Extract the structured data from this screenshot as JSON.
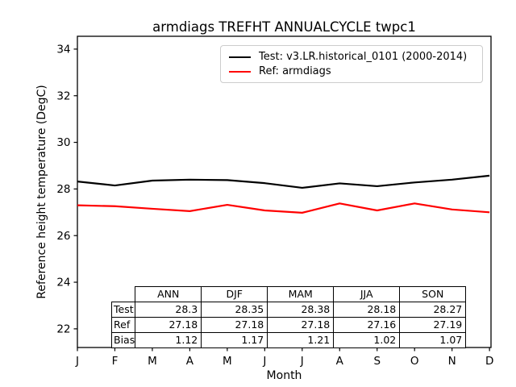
{
  "title": "armdiags TREFHT ANNUALCYCLE twpc1",
  "axes": {
    "xlabel": "Month",
    "ylabel": "Reference height temperature (DegC)"
  },
  "legend": {
    "position": "upper right",
    "items": [
      {
        "label": "Test: v3.LR.historical_0101 (2000-2014)",
        "color": "#000000"
      },
      {
        "label": "Ref: armdiags",
        "color": "#ff0000"
      }
    ]
  },
  "chart_data": {
    "type": "line",
    "title": "armdiags TREFHT ANNUALCYCLE twpc1",
    "xlabel": "Month",
    "ylabel": "Reference height temperature (DegC)",
    "x_ticklabels": [
      "J",
      "F",
      "M",
      "A",
      "M",
      "J",
      "J",
      "A",
      "S",
      "O",
      "N",
      "D"
    ],
    "y_ticks": [
      22,
      24,
      26,
      28,
      30,
      32,
      34
    ],
    "ylim": [
      21.2,
      34.55
    ],
    "grid": false,
    "legend_position": "upper right",
    "series": [
      {
        "name": "Test: v3.LR.historical_0101 (2000-2014)",
        "color": "#000000",
        "values": [
          28.32,
          28.15,
          28.36,
          28.4,
          28.38,
          28.25,
          28.05,
          28.24,
          28.12,
          28.28,
          28.4,
          28.57
        ]
      },
      {
        "name": "Ref: armdiags",
        "color": "#ff0000",
        "values": [
          27.3,
          27.26,
          27.15,
          27.05,
          27.32,
          27.08,
          26.98,
          27.38,
          27.08,
          27.38,
          27.12,
          27.0
        ]
      }
    ]
  },
  "table": {
    "col_headers": [
      "ANN",
      "DJF",
      "MAM",
      "JJA",
      "SON"
    ],
    "rows": [
      {
        "label": "Test",
        "values": [
          "28.3",
          "28.35",
          "28.38",
          "28.18",
          "28.27"
        ]
      },
      {
        "label": "Ref",
        "values": [
          "27.18",
          "27.18",
          "27.18",
          "27.16",
          "27.19"
        ]
      },
      {
        "label": "Bias",
        "values": [
          "1.12",
          "1.17",
          "1.21",
          "1.02",
          "1.07"
        ]
      }
    ]
  }
}
